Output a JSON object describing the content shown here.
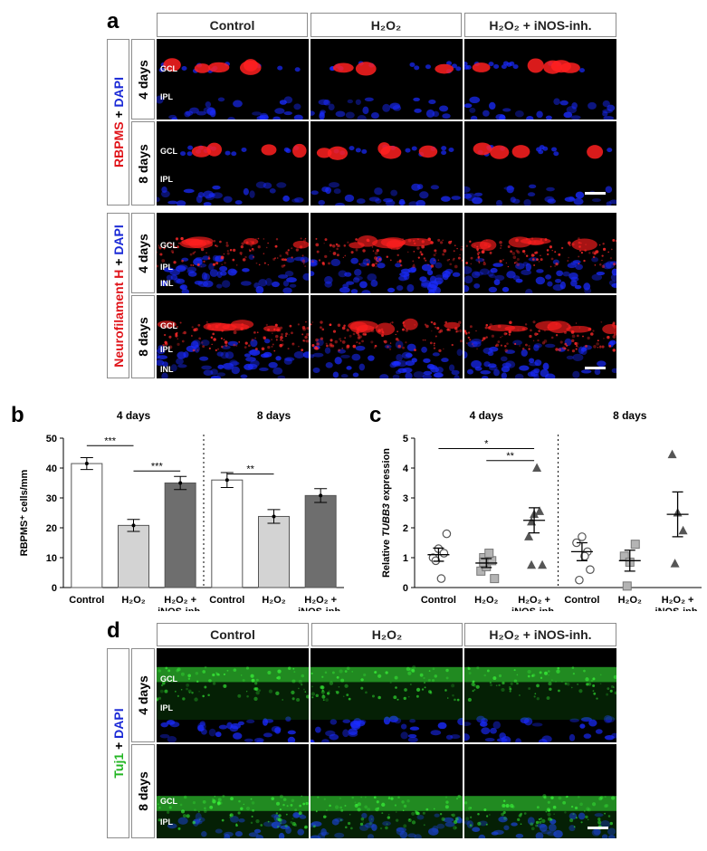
{
  "panel_a": {
    "label": "a",
    "columns": [
      "Control",
      "H₂O₂",
      "H₂O₂ + iNOS-inh."
    ],
    "stain_top": {
      "red": "RBPMS",
      "plus": " + ",
      "blue": "DAPI"
    },
    "stain_bottom": {
      "red": "Neurofilament H",
      "plus": " + ",
      "blue": "DAPI"
    },
    "rows": [
      "4 days",
      "8 days"
    ],
    "layers_top": [
      "GCL",
      "IPL"
    ],
    "layers_bottom": [
      "GCL",
      "IPL",
      "INL"
    ],
    "colors": {
      "stain": "#ff2020",
      "dapi": "#1a2bff"
    }
  },
  "panel_b": {
    "label": "b",
    "groups": [
      "4 days",
      "8 days"
    ],
    "chart_data": {
      "type": "bar",
      "ylabel": "RBPMS⁺ cells/mm",
      "ylim": [
        0,
        50
      ],
      "yticks": [
        0,
        10,
        20,
        30,
        40,
        50
      ],
      "categories": [
        "Control",
        "H₂O₂",
        "H₂O₂ +|iNOS-inh.",
        "Control",
        "H₂O₂",
        "H₂O₂ +|iNOS-inh."
      ],
      "values": [
        41.5,
        20.8,
        35.0,
        36.0,
        23.8,
        30.8
      ],
      "errors": [
        2.0,
        2.0,
        2.2,
        2.5,
        2.3,
        2.3
      ],
      "bar_colors": [
        "#ffffff",
        "#d3d3d3",
        "#6e6e6e",
        "#ffffff",
        "#d3d3d3",
        "#6e6e6e"
      ],
      "significance": [
        {
          "from": 0,
          "to": 1,
          "y": 47.5,
          "label": "***"
        },
        {
          "from": 1,
          "to": 2,
          "y": 39.0,
          "label": "***"
        },
        {
          "from": 3,
          "to": 4,
          "y": 38.0,
          "label": "**"
        }
      ]
    }
  },
  "panel_c": {
    "label": "c",
    "groups": [
      "4 days",
      "8 days"
    ],
    "chart_data": {
      "type": "scatter",
      "ylabel_prefix": "Relative ",
      "ylabel_gene": "TUBB3",
      "ylabel_suffix": " expression",
      "ylim": [
        0,
        5
      ],
      "yticks": [
        0,
        1,
        2,
        3,
        4,
        5
      ],
      "categories": [
        "Control",
        "H₂O₂",
        "H₂O₂ +|iNOS-inh.",
        "Control",
        "H₂O₂",
        "H₂O₂ +|iNOS-inh."
      ],
      "markers": [
        "circle",
        "square",
        "triangle",
        "circle",
        "square",
        "triangle"
      ],
      "points": [
        [
          1.0,
          1.3,
          1.15,
          0.9,
          0.3,
          1.8
        ],
        [
          0.55,
          0.7,
          0.9,
          1.0,
          1.15,
          0.3,
          0.85
        ],
        [
          1.7,
          2.45,
          2.55,
          2.2,
          4.0,
          0.75,
          0.75
        ],
        [
          1.5,
          1.7,
          1.2,
          0.25,
          1.05,
          0.6
        ],
        [
          1.05,
          0.85,
          1.45,
          0.05
        ],
        [
          4.45,
          2.5,
          1.9,
          0.8
        ]
      ],
      "means": [
        1.1,
        0.82,
        2.25,
        1.2,
        0.9,
        2.45
      ],
      "sem": [
        0.22,
        0.15,
        0.42,
        0.3,
        0.35,
        0.75
      ],
      "significance": [
        {
          "from": 0,
          "to": 2,
          "y": 4.65,
          "label": "*"
        },
        {
          "from": 1,
          "to": 2,
          "y": 4.25,
          "label": "**"
        }
      ]
    }
  },
  "panel_d": {
    "label": "d",
    "columns": [
      "Control",
      "H₂O₂",
      "H₂O₂ + iNOS-inh."
    ],
    "stain": {
      "green": "Tuj1",
      "plus": " + ",
      "blue": "DAPI"
    },
    "rows": [
      "4 days",
      "8 days"
    ],
    "layers": [
      "GCL",
      "IPL"
    ],
    "colors": {
      "stain": "#3cff3c",
      "dapi": "#1a2bff"
    }
  }
}
